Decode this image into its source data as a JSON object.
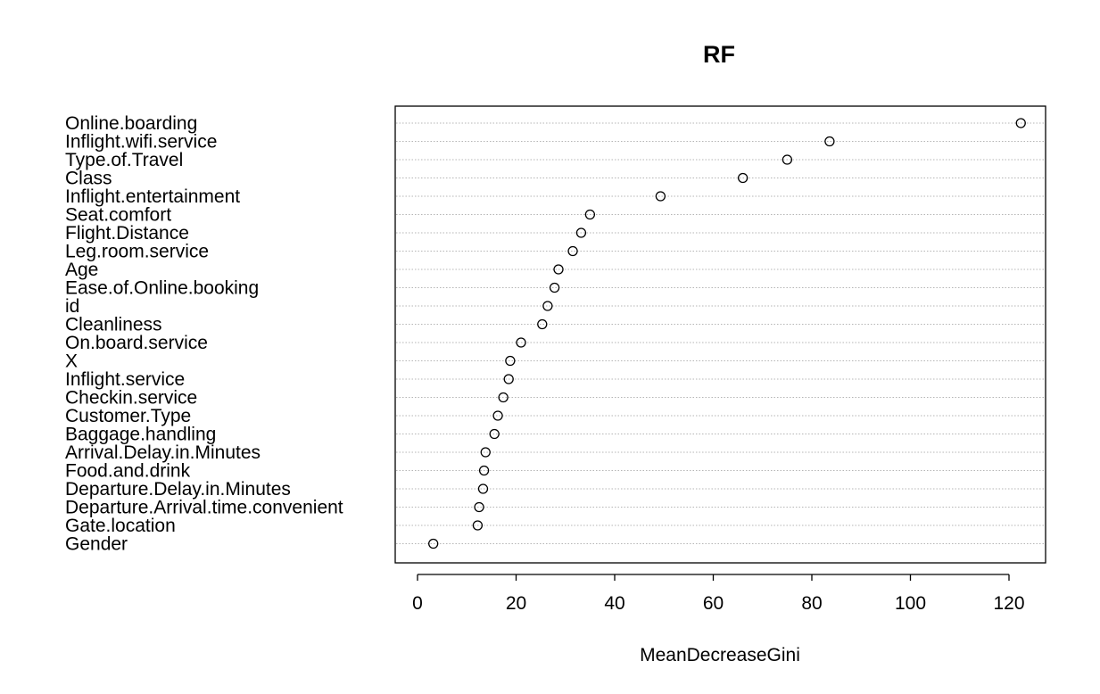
{
  "chart_data": {
    "type": "scatter",
    "title": "RF",
    "xlabel": "MeanDecreaseGini",
    "xlim": [
      -5,
      127
    ],
    "xticks": [
      0,
      20,
      40,
      60,
      80,
      100,
      120
    ],
    "grid": "horizontal dotted",
    "points": [
      {
        "label": "Online.boarding",
        "value": 122.4
      },
      {
        "label": "Inflight.wifi.service",
        "value": 83.6
      },
      {
        "label": "Type.of.Travel",
        "value": 75.0
      },
      {
        "label": "Class",
        "value": 66.0
      },
      {
        "label": "Inflight.entertainment",
        "value": 49.3
      },
      {
        "label": "Seat.comfort",
        "value": 35.0
      },
      {
        "label": "Flight.Distance",
        "value": 33.2
      },
      {
        "label": "Leg.room.service",
        "value": 31.5
      },
      {
        "label": "Age",
        "value": 28.6
      },
      {
        "label": "Ease.of.Online.booking",
        "value": 27.8
      },
      {
        "label": "id",
        "value": 26.4
      },
      {
        "label": "Cleanliness",
        "value": 25.3
      },
      {
        "label": "On.board.service",
        "value": 21.0
      },
      {
        "label": "X",
        "value": 18.8
      },
      {
        "label": "Inflight.service",
        "value": 18.5
      },
      {
        "label": "Checkin.service",
        "value": 17.4
      },
      {
        "label": "Customer.Type",
        "value": 16.3
      },
      {
        "label": "Baggage.handling",
        "value": 15.6
      },
      {
        "label": "Arrival.Delay.in.Minutes",
        "value": 13.8
      },
      {
        "label": "Food.and.drink",
        "value": 13.5
      },
      {
        "label": "Departure.Delay.in.Minutes",
        "value": 13.3
      },
      {
        "label": "Departure.Arrival.time.convenient",
        "value": 12.5
      },
      {
        "label": "Gate.location",
        "value": 12.2
      },
      {
        "label": "Gender",
        "value": 3.2
      }
    ]
  }
}
